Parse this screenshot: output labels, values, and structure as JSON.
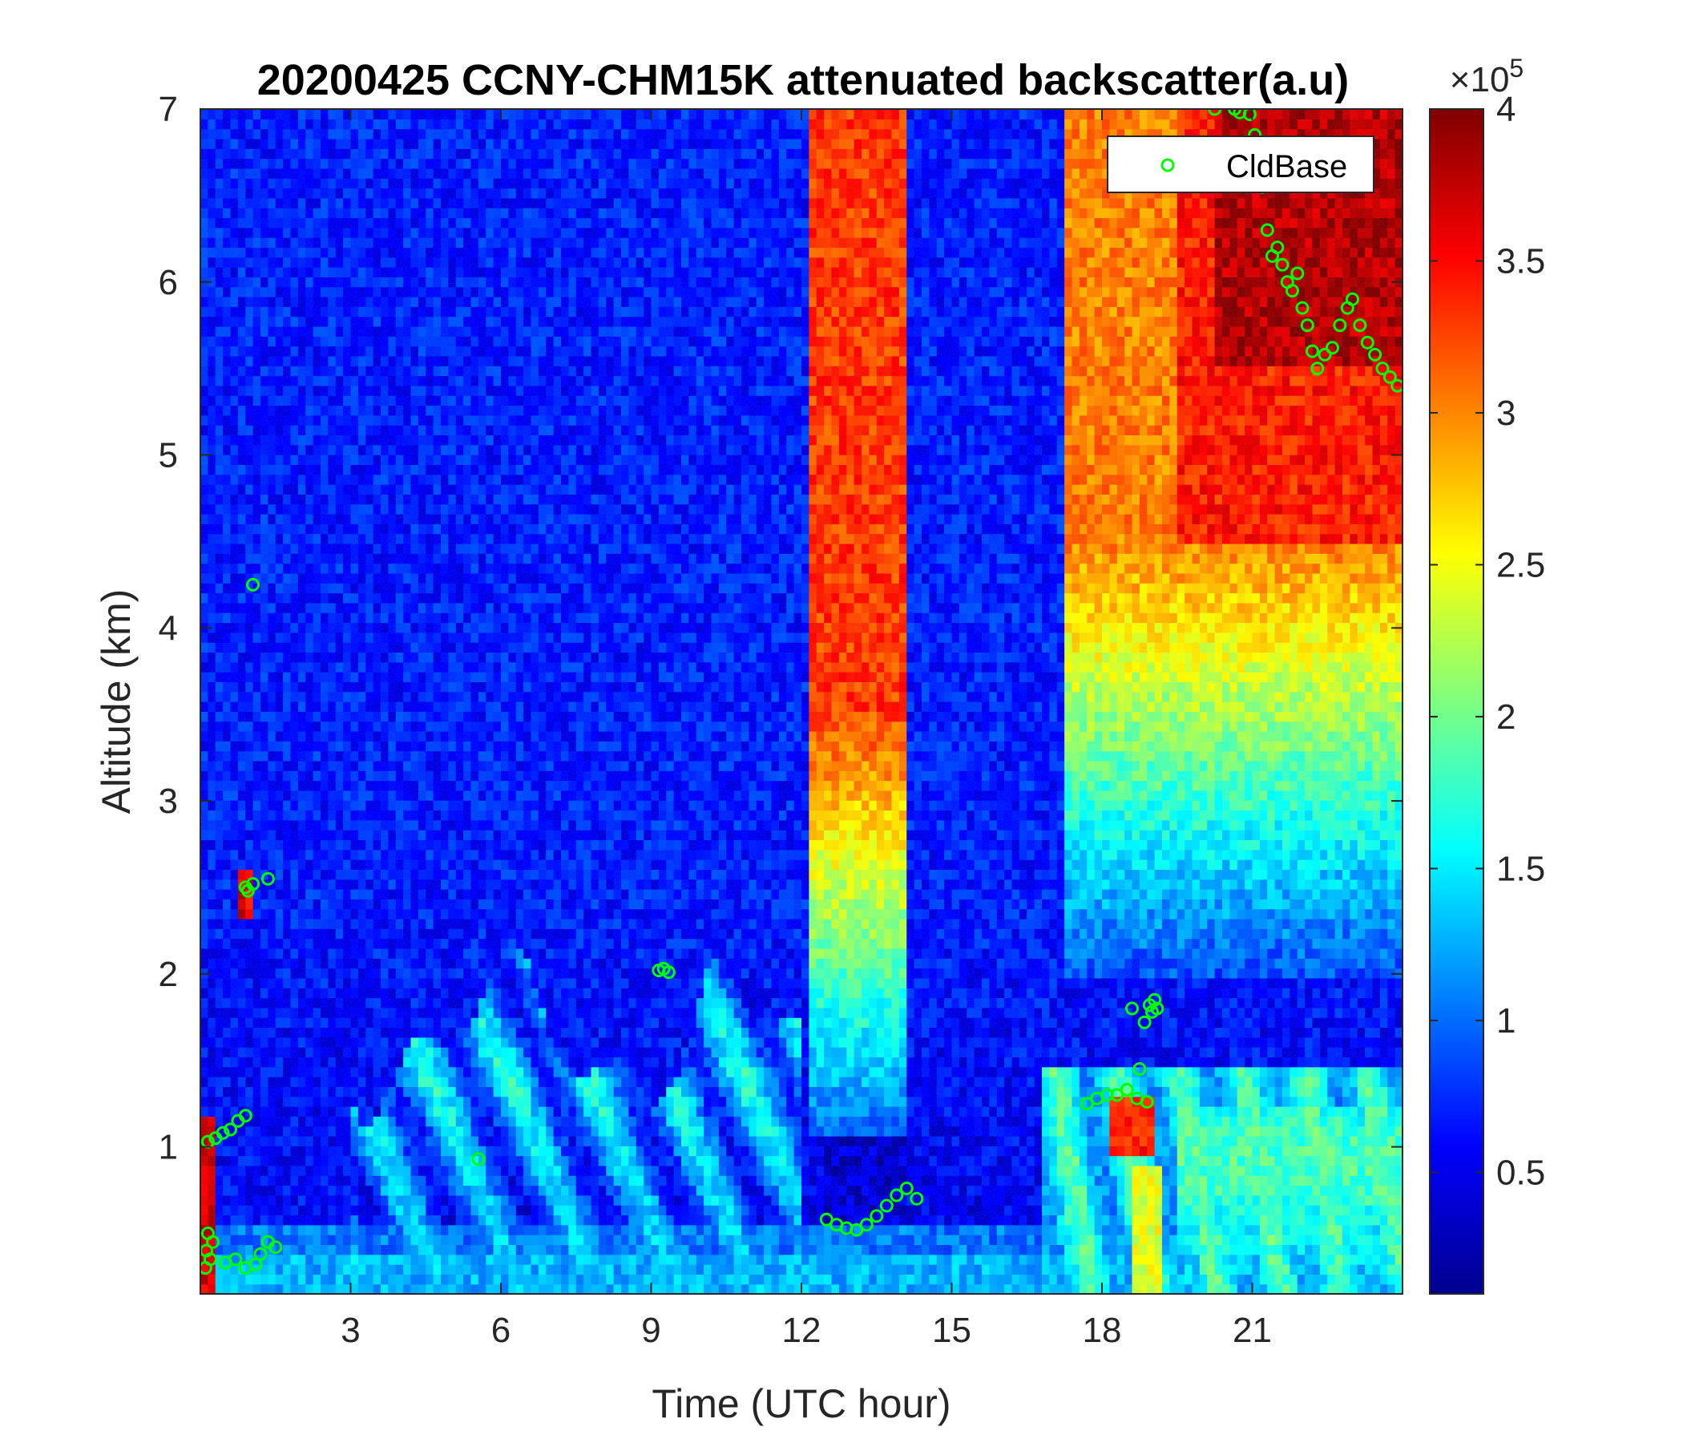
{
  "chart_data": {
    "type": "heatmap",
    "title": "20200425 CCNY-CHM15K attenuated backscatter(a.u)",
    "xlabel": "Time (UTC hour)",
    "ylabel": "Altitude (km)",
    "xlim": [
      0,
      24
    ],
    "ylim": [
      0.15,
      7
    ],
    "x_ticks": [
      3,
      6,
      9,
      12,
      15,
      18,
      21
    ],
    "y_ticks": [
      1,
      2,
      3,
      4,
      5,
      6,
      7
    ],
    "colorbar": {
      "colormap": "jet",
      "range": [
        0.1,
        4
      ],
      "ticks": [
        0.5,
        1,
        1.5,
        2,
        2.5,
        3,
        3.5,
        4
      ],
      "exponent_label": "×10",
      "exponent": "5"
    },
    "legend": {
      "placement": "top-right",
      "entries": [
        "CldBase"
      ]
    },
    "series": [
      {
        "name": "CldBase",
        "marker": "circle",
        "color": "#00ff00",
        "points": [
          [
            0.1,
            0.3
          ],
          [
            0.12,
            0.4
          ],
          [
            0.15,
            0.5
          ],
          [
            0.2,
            0.35
          ],
          [
            0.25,
            0.45
          ],
          [
            0.15,
            1.03
          ],
          [
            0.3,
            1.05
          ],
          [
            0.45,
            1.08
          ],
          [
            0.6,
            1.1
          ],
          [
            0.75,
            1.15
          ],
          [
            0.9,
            1.18
          ],
          [
            0.5,
            0.33
          ],
          [
            0.7,
            0.35
          ],
          [
            0.9,
            0.3
          ],
          [
            1.1,
            0.32
          ],
          [
            1.2,
            0.38
          ],
          [
            1.35,
            0.45
          ],
          [
            1.5,
            0.42
          ],
          [
            0.9,
            2.5
          ],
          [
            0.95,
            2.48
          ],
          [
            1.05,
            2.52
          ],
          [
            1.35,
            2.55
          ],
          [
            1.05,
            4.25
          ],
          [
            5.55,
            0.93
          ],
          [
            9.15,
            2.02
          ],
          [
            9.25,
            2.03
          ],
          [
            9.35,
            2.01
          ],
          [
            12.5,
            0.58
          ],
          [
            12.7,
            0.55
          ],
          [
            12.9,
            0.53
          ],
          [
            13.1,
            0.52
          ],
          [
            13.3,
            0.55
          ],
          [
            13.5,
            0.6
          ],
          [
            13.7,
            0.66
          ],
          [
            13.9,
            0.72
          ],
          [
            14.1,
            0.76
          ],
          [
            14.3,
            0.7
          ],
          [
            17.7,
            1.25
          ],
          [
            17.9,
            1.28
          ],
          [
            18.1,
            1.3
          ],
          [
            18.3,
            1.3
          ],
          [
            18.5,
            1.33
          ],
          [
            18.7,
            1.28
          ],
          [
            18.9,
            1.26
          ],
          [
            18.75,
            1.45
          ],
          [
            18.6,
            1.8
          ],
          [
            18.85,
            1.72
          ],
          [
            18.95,
            1.82
          ],
          [
            19.0,
            1.78
          ],
          [
            19.05,
            1.85
          ],
          [
            19.1,
            1.8
          ],
          [
            20.25,
            7.0
          ],
          [
            20.65,
            7.0
          ],
          [
            20.75,
            6.98
          ],
          [
            20.95,
            6.97
          ],
          [
            21.05,
            6.85
          ],
          [
            21.2,
            6.55
          ],
          [
            21.3,
            6.3
          ],
          [
            21.4,
            6.15
          ],
          [
            21.5,
            6.2
          ],
          [
            21.6,
            6.1
          ],
          [
            21.7,
            6.0
          ],
          [
            21.8,
            5.95
          ],
          [
            21.9,
            6.05
          ],
          [
            22.0,
            5.85
          ],
          [
            22.1,
            5.75
          ],
          [
            22.2,
            5.6
          ],
          [
            22.3,
            5.5
          ],
          [
            22.45,
            5.58
          ],
          [
            22.6,
            5.62
          ],
          [
            22.75,
            5.75
          ],
          [
            22.9,
            5.85
          ],
          [
            23.0,
            5.9
          ],
          [
            23.15,
            5.75
          ],
          [
            23.3,
            5.65
          ],
          [
            23.45,
            5.58
          ],
          [
            23.6,
            5.5
          ],
          [
            23.75,
            5.45
          ],
          [
            23.9,
            5.4
          ]
        ]
      }
    ]
  }
}
